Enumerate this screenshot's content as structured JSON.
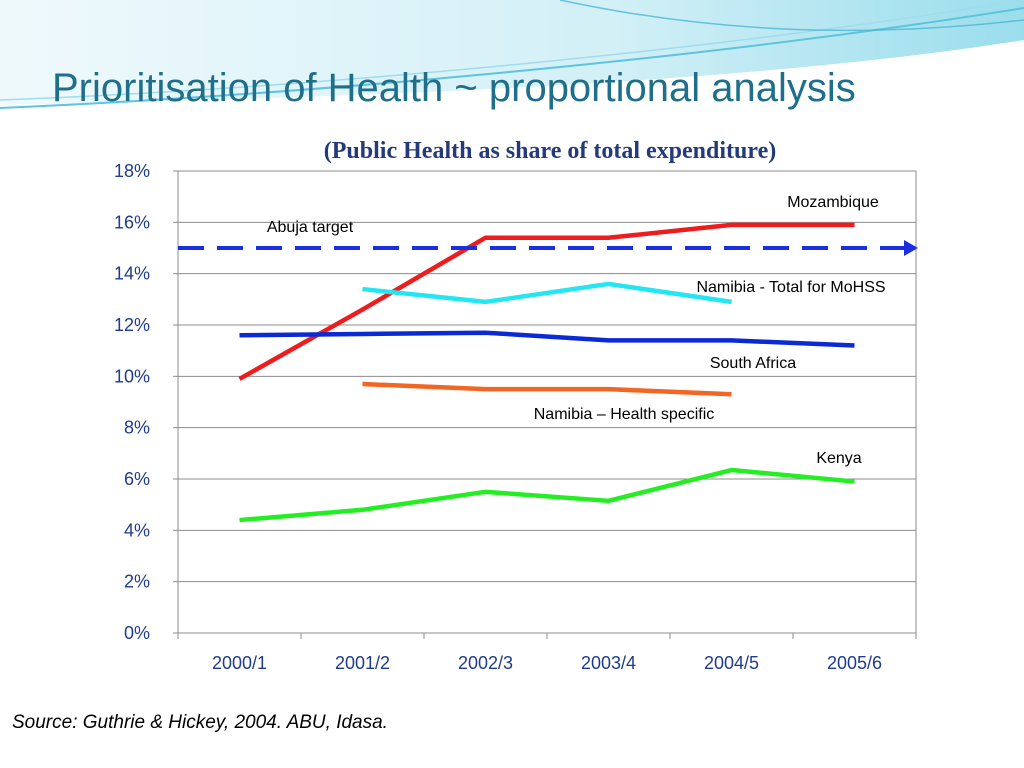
{
  "slide": {
    "title": "Prioritisation of Health ~ proportional analysis",
    "source": "Source: Guthrie & Hickey, 2004. ABU, Idasa."
  },
  "colors": {
    "title": "#1f6f8b",
    "subtitle": "#243a7a",
    "axis_labels": "#1f3c8c",
    "mozambique": "#ee1c1c",
    "namibia_total": "#22e6f2",
    "south_africa": "#0a2ad6",
    "namibia_health": "#f26522",
    "kenya": "#22ee22",
    "abuja": "#1a2fe0"
  },
  "chart_data": {
    "type": "line",
    "title": "(Public Health as share of total expenditure)",
    "categories": [
      "2000/1",
      "2001/2",
      "2002/3",
      "2003/4",
      "2004/5",
      "2005/6"
    ],
    "ylim": [
      0,
      18
    ],
    "yticks": [
      "0%",
      "2%",
      "4%",
      "6%",
      "8%",
      "10%",
      "12%",
      "14%",
      "16%",
      "18%"
    ],
    "ytick_values": [
      0,
      2,
      4,
      6,
      8,
      10,
      12,
      14,
      16,
      18
    ],
    "grid": true,
    "series": [
      {
        "name": "Mozambique",
        "color_key": "mozambique",
        "values": [
          9.9,
          12.6,
          15.4,
          15.4,
          15.9,
          15.9
        ]
      },
      {
        "name": "Namibia - Total for MoHSS",
        "color_key": "namibia_total",
        "values": [
          null,
          13.4,
          12.9,
          13.6,
          12.9,
          null
        ]
      },
      {
        "name": "South Africa",
        "color_key": "south_africa",
        "values": [
          11.6,
          11.65,
          11.7,
          11.4,
          11.4,
          11.2
        ]
      },
      {
        "name": "Namibia – Health specific",
        "color_key": "namibia_health",
        "values": [
          null,
          9.7,
          9.5,
          9.5,
          9.3,
          null
        ]
      },
      {
        "name": "Kenya",
        "color_key": "kenya",
        "values": [
          4.4,
          4.8,
          5.5,
          5.15,
          6.35,
          5.9
        ]
      }
    ],
    "target": {
      "name": "Abuja target",
      "value": 15,
      "color_key": "abuja"
    },
    "annotations": [
      {
        "text": "Mozambique",
        "anchor_series": 0
      },
      {
        "text": "Abuja target",
        "anchor_series": -1
      },
      {
        "text": "Namibia - Total for MoHSS",
        "anchor_series": 1
      },
      {
        "text": "South Africa",
        "anchor_series": 2
      },
      {
        "text": "Namibia – Health specific",
        "anchor_series": 3
      },
      {
        "text": "Kenya",
        "anchor_series": 4
      }
    ]
  }
}
